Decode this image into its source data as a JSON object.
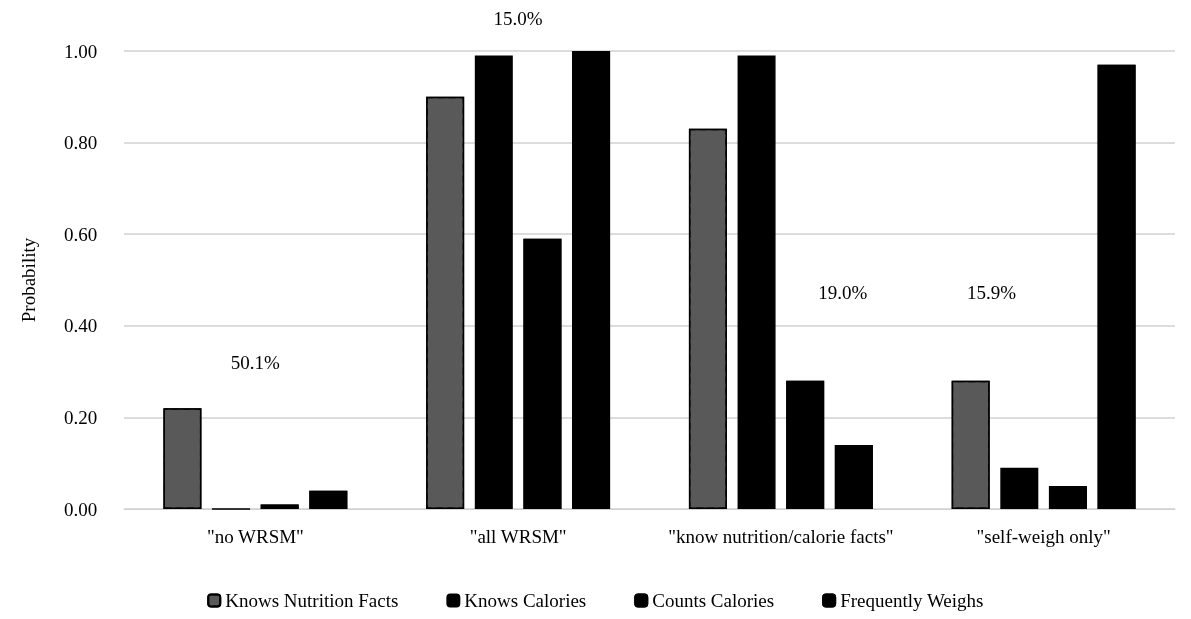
{
  "chart_data": {
    "type": "bar",
    "ylabel": "Probability",
    "categories": [
      "\"no WRSM\"",
      "\"all WRSM\"",
      "\"know nutrition/calorie facts\"",
      "\"self-weigh only\""
    ],
    "series": [
      {
        "name": "Knows Nutrition Facts",
        "color": "#595959",
        "values": [
          0.22,
          0.9,
          0.83,
          0.28
        ]
      },
      {
        "name": "Knows Calories",
        "color": "#000000",
        "values": [
          0.0,
          0.99,
          0.99,
          0.09
        ]
      },
      {
        "name": "Counts Calories",
        "color": "#000000",
        "values": [
          0.01,
          0.59,
          0.28,
          0.05
        ]
      },
      {
        "name": "Frequently Weighs",
        "color": "#000000",
        "values": [
          0.04,
          1.0,
          0.14,
          0.97
        ]
      }
    ],
    "ylim": [
      0,
      1
    ],
    "yticks": [
      {
        "value": 0,
        "label": "0.00"
      },
      {
        "value": 0.2,
        "label": "0.20"
      },
      {
        "value": 0.4,
        "label": "0.40"
      },
      {
        "value": 0.6,
        "label": "0.60"
      },
      {
        "value": 0.8,
        "label": "0.80"
      },
      {
        "value": 1,
        "label": "1.00"
      }
    ],
    "grid": "y",
    "legend": "bottom",
    "annotations": [
      "50.1%",
      "15.0%",
      "19.0%",
      "15.9%"
    ]
  }
}
